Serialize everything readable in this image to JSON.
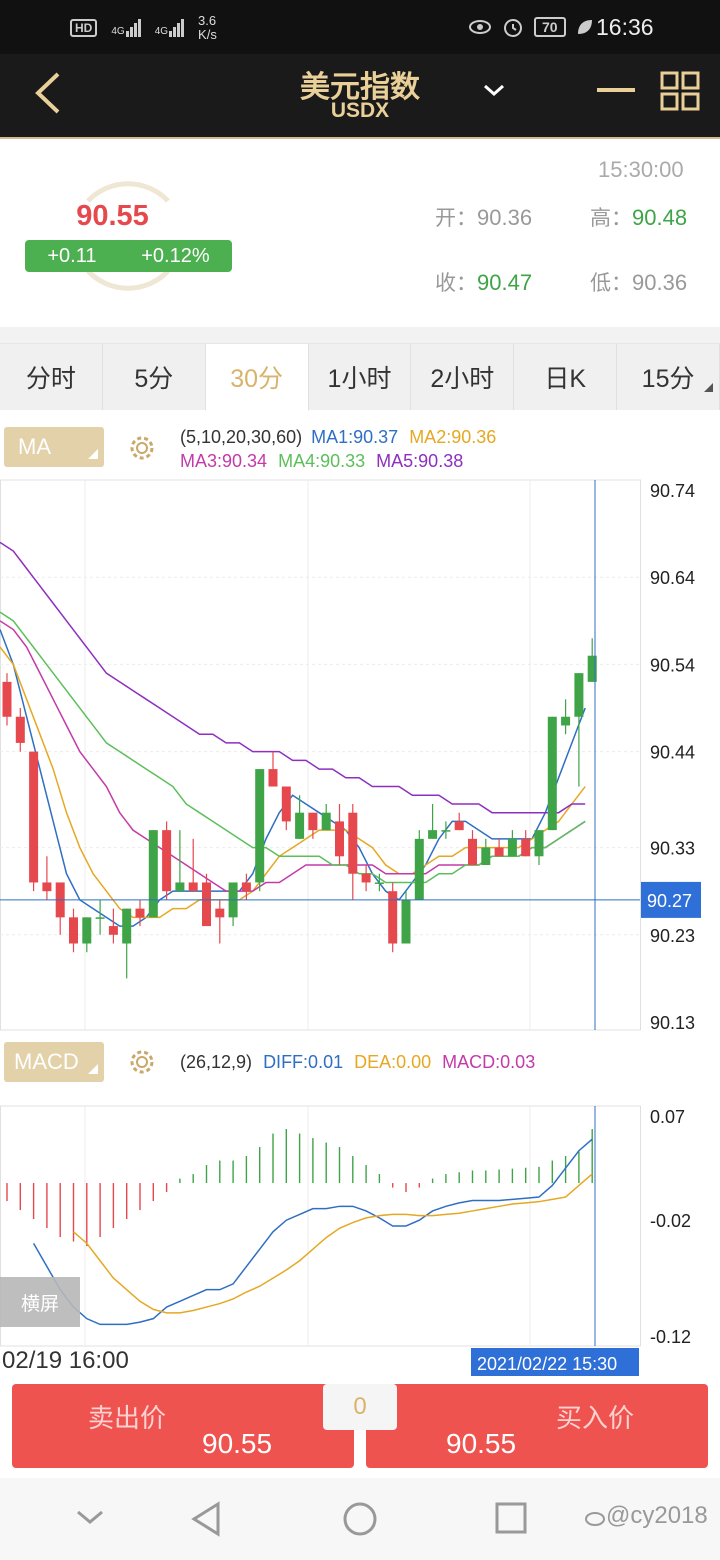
{
  "status_bar": {
    "network_hd": "HD",
    "signal_1": "4G",
    "signal_2": "4G",
    "speed_top": "3.6",
    "speed_bottom": "K/s",
    "battery": "70",
    "time": "16:36"
  },
  "header": {
    "title": "美元指数",
    "subtitle": "USDX"
  },
  "quote": {
    "last_price": "90.55",
    "change": "+0.11",
    "change_pct": "+0.12%",
    "timestamp": "15:30:00",
    "open_label": "开：",
    "open_value": "90.36",
    "high_label": "高：",
    "high_value": "90.48",
    "close_label": "收：",
    "close_value": "90.47",
    "low_label": "低：",
    "low_value": "90.36"
  },
  "tabs": [
    {
      "label": "分时"
    },
    {
      "label": "5分"
    },
    {
      "label": "30分"
    },
    {
      "label": "1小时"
    },
    {
      "label": "2小时"
    },
    {
      "label": "日K"
    },
    {
      "label": "15分"
    }
  ],
  "ma_panel": {
    "button": "MA",
    "params": "(5,10,20,30,60)",
    "ma1": "MA1:90.37",
    "ma2": "MA2:90.36",
    "ma3": "MA3:90.34",
    "ma4": "MA4:90.33",
    "ma5": "MA5:90.38"
  },
  "macd_panel": {
    "button": "MACD",
    "params": "(26,12,9)",
    "diff": "DIFF:0.01",
    "dea": "DEA:0.00",
    "macd": "MACD:0.03",
    "landscape_button": "横屏"
  },
  "colors": {
    "up": "#e5484d",
    "down": "#3fa447",
    "ma1": "#2f6fc3",
    "ma2": "#e6a823",
    "ma3": "#c43aa8",
    "ma4": "#5cbf5a",
    "ma5": "#8e2fc0",
    "accent_gold": "#d9b36b",
    "cursor_blue": "#2f6fc3"
  },
  "chart_data": [
    {
      "type": "candlestick",
      "title": "",
      "y_ticks": [
        "90.74",
        "90.64",
        "90.54",
        "90.44",
        "90.33",
        "90.23",
        "90.13"
      ],
      "ylim": [
        90.13,
        90.74
      ],
      "cursor_value": "90.27",
      "grid": true,
      "candles": [
        {
          "o": 90.52,
          "c": 90.48,
          "h": 90.53,
          "l": 90.47
        },
        {
          "o": 90.48,
          "c": 90.45,
          "h": 90.49,
          "l": 90.44
        },
        {
          "o": 90.44,
          "c": 90.29,
          "h": 90.44,
          "l": 90.28
        },
        {
          "o": 90.29,
          "c": 90.28,
          "h": 90.32,
          "l": 90.27
        },
        {
          "o": 90.29,
          "c": 90.25,
          "h": 90.29,
          "l": 90.23
        },
        {
          "o": 90.25,
          "c": 90.22,
          "h": 90.26,
          "l": 90.21
        },
        {
          "o": 90.22,
          "c": 90.25,
          "h": 90.25,
          "l": 90.21
        },
        {
          "o": 90.25,
          "c": 90.25,
          "h": 90.27,
          "l": 90.23
        },
        {
          "o": 90.24,
          "c": 90.23,
          "h": 90.26,
          "l": 90.22
        },
        {
          "o": 90.22,
          "c": 90.26,
          "h": 90.26,
          "l": 90.18
        },
        {
          "o": 90.26,
          "c": 90.25,
          "h": 90.27,
          "l": 90.24
        },
        {
          "o": 90.25,
          "c": 90.35,
          "h": 90.35,
          "l": 90.25
        },
        {
          "o": 90.35,
          "c": 90.28,
          "h": 90.36,
          "l": 90.27
        },
        {
          "o": 90.28,
          "c": 90.29,
          "h": 90.35,
          "l": 90.28
        },
        {
          "o": 90.29,
          "c": 90.28,
          "h": 90.34,
          "l": 90.28
        },
        {
          "o": 90.29,
          "c": 90.24,
          "h": 90.3,
          "l": 90.24
        },
        {
          "o": 90.26,
          "c": 90.25,
          "h": 90.27,
          "l": 90.22
        },
        {
          "o": 90.25,
          "c": 90.29,
          "h": 90.29,
          "l": 90.24
        },
        {
          "o": 90.29,
          "c": 90.28,
          "h": 90.3,
          "l": 90.27
        },
        {
          "o": 90.29,
          "c": 90.42,
          "h": 90.42,
          "l": 90.28
        },
        {
          "o": 90.42,
          "c": 90.4,
          "h": 90.44,
          "l": 90.4
        },
        {
          "o": 90.4,
          "c": 90.36,
          "h": 90.4,
          "l": 90.35
        },
        {
          "o": 90.34,
          "c": 90.37,
          "h": 90.39,
          "l": 90.34
        },
        {
          "o": 90.37,
          "c": 90.35,
          "h": 90.37,
          "l": 90.34
        },
        {
          "o": 90.35,
          "c": 90.37,
          "h": 90.38,
          "l": 90.35
        },
        {
          "o": 90.36,
          "c": 90.32,
          "h": 90.38,
          "l": 90.31
        },
        {
          "o": 90.37,
          "c": 90.3,
          "h": 90.38,
          "l": 90.27
        },
        {
          "o": 90.3,
          "c": 90.29,
          "h": 90.31,
          "l": 90.28
        },
        {
          "o": 90.29,
          "c": 90.29,
          "h": 90.3,
          "l": 90.28
        },
        {
          "o": 90.28,
          "c": 90.22,
          "h": 90.29,
          "l": 90.21
        },
        {
          "o": 90.22,
          "c": 90.27,
          "h": 90.28,
          "l": 90.22
        },
        {
          "o": 90.27,
          "c": 90.34,
          "h": 90.35,
          "l": 90.27
        },
        {
          "o": 90.34,
          "c": 90.35,
          "h": 90.38,
          "l": 90.34
        },
        {
          "o": 90.35,
          "c": 90.35,
          "h": 90.36,
          "l": 90.34
        },
        {
          "o": 90.36,
          "c": 90.35,
          "h": 90.37,
          "l": 90.35
        },
        {
          "o": 90.34,
          "c": 90.31,
          "h": 90.35,
          "l": 90.31
        },
        {
          "o": 90.31,
          "c": 90.33,
          "h": 90.34,
          "l": 90.31
        },
        {
          "o": 90.33,
          "c": 90.32,
          "h": 90.34,
          "l": 90.32
        },
        {
          "o": 90.32,
          "c": 90.34,
          "h": 90.35,
          "l": 90.32
        },
        {
          "o": 90.34,
          "c": 90.32,
          "h": 90.35,
          "l": 90.32
        },
        {
          "o": 90.32,
          "c": 90.35,
          "h": 90.35,
          "l": 90.31
        },
        {
          "o": 90.35,
          "c": 90.48,
          "h": 90.48,
          "l": 90.35
        },
        {
          "o": 90.47,
          "c": 90.48,
          "h": 90.5,
          "l": 90.46
        },
        {
          "o": 90.48,
          "c": 90.53,
          "h": 90.53,
          "l": 90.4
        },
        {
          "o": 90.52,
          "c": 90.55,
          "h": 90.57,
          "l": 90.52
        }
      ],
      "ma_lines": {
        "MA1": [
          90.58,
          90.54,
          90.48,
          90.42,
          90.36,
          90.3,
          90.27,
          90.26,
          90.25,
          90.24,
          90.24,
          90.25,
          90.27,
          90.28,
          90.28,
          90.28,
          90.28,
          90.28,
          90.28,
          90.3,
          90.34,
          90.37,
          90.39,
          90.38,
          90.37,
          90.36,
          90.35,
          90.33,
          90.3,
          90.28,
          90.27,
          90.29,
          90.31,
          90.34,
          90.36,
          90.36,
          90.35,
          90.34,
          90.34,
          90.34,
          90.34,
          90.37,
          90.41,
          90.45,
          90.49
        ],
        "MA2": [
          90.56,
          90.54,
          90.5,
          90.46,
          90.42,
          90.37,
          90.33,
          90.3,
          90.28,
          90.26,
          90.25,
          90.25,
          90.25,
          90.26,
          90.26,
          90.27,
          90.27,
          90.27,
          90.27,
          90.28,
          90.3,
          90.32,
          90.33,
          90.34,
          90.35,
          90.35,
          90.35,
          90.34,
          90.33,
          90.31,
          90.3,
          90.3,
          90.31,
          90.32,
          90.32,
          90.33,
          90.33,
          90.33,
          90.33,
          90.33,
          90.34,
          90.35,
          90.36,
          90.38,
          90.4
        ],
        "MA3": [
          90.59,
          90.58,
          90.56,
          90.53,
          90.5,
          90.47,
          90.44,
          90.42,
          90.4,
          90.37,
          90.35,
          90.34,
          90.33,
          90.32,
          90.31,
          90.3,
          90.29,
          90.28,
          90.28,
          90.28,
          90.29,
          90.29,
          90.3,
          90.31,
          90.31,
          90.31,
          90.31,
          90.31,
          90.31,
          90.3,
          90.3,
          90.3,
          90.3,
          90.31,
          90.31,
          90.31,
          90.31,
          90.32,
          90.32,
          90.32,
          90.33,
          90.33,
          90.34,
          90.35,
          90.36
        ],
        "MA4": [
          90.6,
          90.59,
          90.57,
          90.55,
          90.53,
          90.51,
          90.49,
          90.47,
          90.45,
          90.44,
          90.43,
          90.42,
          90.41,
          90.4,
          90.38,
          90.37,
          90.36,
          90.35,
          90.34,
          90.33,
          90.33,
          90.32,
          90.32,
          90.32,
          90.32,
          90.31,
          90.31,
          90.3,
          90.3,
          90.29,
          90.29,
          90.29,
          90.29,
          90.3,
          90.3,
          90.31,
          90.31,
          90.32,
          90.32,
          90.32,
          90.33,
          90.33,
          90.34,
          90.35,
          90.36
        ],
        "MA5": [
          90.68,
          90.67,
          90.65,
          90.63,
          90.61,
          90.59,
          90.57,
          90.55,
          90.53,
          90.52,
          90.51,
          90.5,
          90.49,
          90.48,
          90.47,
          90.46,
          90.46,
          90.45,
          90.45,
          90.44,
          90.44,
          90.44,
          90.43,
          90.43,
          90.42,
          90.42,
          90.41,
          90.41,
          90.4,
          90.4,
          90.4,
          90.39,
          90.39,
          90.39,
          90.38,
          90.38,
          90.38,
          90.37,
          90.37,
          90.37,
          90.37,
          90.37,
          90.37,
          90.38,
          90.38
        ]
      }
    },
    {
      "type": "bar",
      "title": "",
      "y_ticks": [
        "0.07",
        "-0.02",
        "-0.12"
      ],
      "ylim": [
        -0.12,
        0.07
      ],
      "x_start_label": "02/19 16:00",
      "x_cursor_label": "2021/02/22 15:30",
      "macd_bars": [
        -0.02,
        -0.03,
        -0.04,
        -0.05,
        -0.06,
        -0.065,
        -0.07,
        -0.06,
        -0.05,
        -0.04,
        -0.03,
        -0.02,
        -0.01,
        0.005,
        0.01,
        0.02,
        0.025,
        0.025,
        0.03,
        0.04,
        0.055,
        0.06,
        0.055,
        0.05,
        0.045,
        0.04,
        0.03,
        0.02,
        0.01,
        -0.005,
        -0.01,
        -0.005,
        0.005,
        0.01,
        0.012,
        0.014,
        0.014,
        0.015,
        0.016,
        0.017,
        0.018,
        0.025,
        0.03,
        0.035,
        0.06
      ],
      "diff": [
        -0.04,
        -0.06,
        -0.08,
        -0.095,
        -0.105,
        -0.11,
        -0.11,
        -0.11,
        -0.108,
        -0.105,
        -0.095,
        -0.09,
        -0.085,
        -0.08,
        -0.08,
        -0.075,
        -0.06,
        -0.045,
        -0.03,
        -0.02,
        -0.015,
        -0.01,
        -0.01,
        -0.008,
        -0.008,
        -0.012,
        -0.018,
        -0.025,
        -0.025,
        -0.02,
        -0.012,
        -0.008,
        -0.005,
        -0.003,
        -0.003,
        -0.003,
        -0.002,
        -0.001,
        0.0,
        0.01,
        0.025,
        0.04,
        0.05
      ],
      "dea": [
        -0.03,
        -0.04,
        -0.055,
        -0.07,
        -0.08,
        -0.09,
        -0.097,
        -0.1,
        -0.1,
        -0.098,
        -0.095,
        -0.092,
        -0.088,
        -0.082,
        -0.077,
        -0.07,
        -0.063,
        -0.055,
        -0.045,
        -0.035,
        -0.027,
        -0.022,
        -0.018,
        -0.016,
        -0.015,
        -0.015,
        -0.016,
        -0.016,
        -0.015,
        -0.014,
        -0.012,
        -0.01,
        -0.008,
        -0.006,
        -0.005,
        -0.004,
        -0.002,
        0.0,
        0.01,
        0.02
      ]
    }
  ],
  "trade": {
    "sell_label": "卖出价",
    "sell_value": "90.55",
    "spread": "0",
    "buy_label": "买入价",
    "buy_value": "90.55"
  },
  "watermark": "@cy2018"
}
